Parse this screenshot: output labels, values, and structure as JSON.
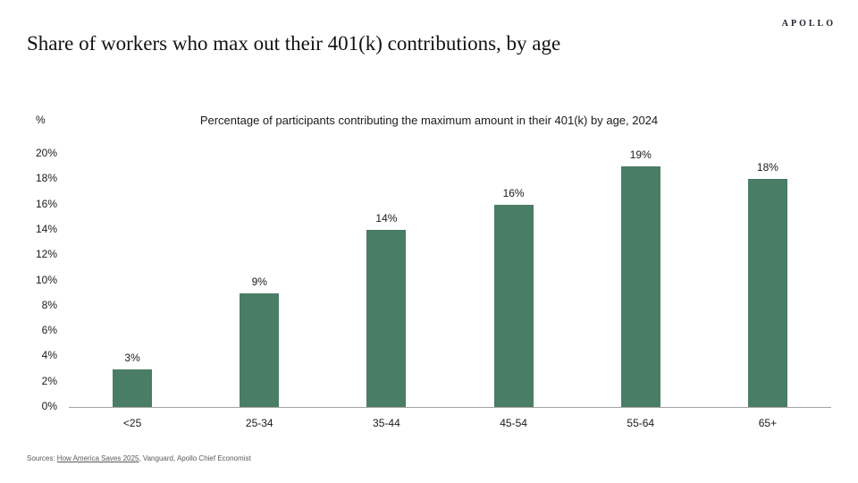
{
  "logo": "APOLLO",
  "title": "Share of workers who max out their 401(k) contributions, by age",
  "chart_data": {
    "type": "bar",
    "title": "Percentage of participants contributing the maximum amount in their 401(k) by age, 2024",
    "unit_label": "%",
    "categories": [
      "<25",
      "25-34",
      "35-44",
      "45-54",
      "55-64",
      "65+"
    ],
    "values": [
      3,
      9,
      14,
      16,
      19,
      18
    ],
    "data_labels": [
      "3%",
      "9%",
      "14%",
      "16%",
      "19%",
      "18%"
    ],
    "ylim": [
      0,
      20
    ],
    "ytick_step": 2,
    "ytick_labels": [
      "0%",
      "2%",
      "4%",
      "6%",
      "8%",
      "10%",
      "12%",
      "14%",
      "16%",
      "18%",
      "20%"
    ],
    "grid": false,
    "legend": "none",
    "bar_color": "#4a7d66",
    "axis_color": "#a3a3a3"
  },
  "footer": {
    "prefix": "Sources: ",
    "link": "How America Saves 2025",
    "suffix": ", Vanguard, Apollo Chief Economist"
  }
}
